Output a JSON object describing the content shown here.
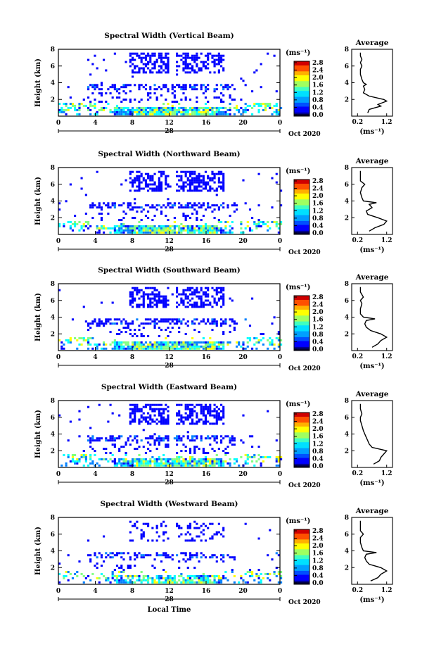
{
  "common": {
    "ylabel": "Height (km)",
    "xlabel": "Local Time",
    "date_label": "Oct 2020",
    "day_label": "28",
    "unit_label": "(ms⁻¹)",
    "avg_title": "Average",
    "x_ticks": [
      "0",
      "4",
      "8",
      "12",
      "16",
      "20",
      "0"
    ],
    "y_ticks": [
      "2",
      "4",
      "6",
      "8"
    ],
    "colorbar_ticks": [
      "2.8",
      "2.4",
      "2.0",
      "1.6",
      "1.2",
      "0.8",
      "0.4",
      "0.0"
    ],
    "avg_x_ticks": [
      "0.2",
      "1.2"
    ],
    "avg_y_ticks": [
      "2",
      "4",
      "6",
      "8"
    ]
  },
  "colors": {
    "scale": [
      "#00008f",
      "#0000ff",
      "#0080ff",
      "#00ffff",
      "#80ff80",
      "#ffff00",
      "#ff8000",
      "#ff0000",
      "#800000"
    ]
  },
  "chart_data": [
    {
      "type": "heatmap",
      "title": "Spectral Width (Vertical Beam)",
      "xlabel": "",
      "ylabel": "Height (km)",
      "xlim": [
        0,
        24
      ],
      "ylim": [
        0,
        8
      ],
      "colorbar_range": [
        0.0,
        2.8
      ],
      "avg_xlim": [
        0.2,
        1.2
      ],
      "avg_profile": {
        "height": [
          0.4,
          0.8,
          1.0,
          1.2,
          1.4,
          1.6,
          1.8,
          2.0,
          2.4,
          2.8,
          3.2,
          3.6,
          3.8,
          4.0,
          4.4,
          5.0,
          5.6,
          6.0,
          6.4,
          6.8,
          7.2,
          7.6
        ],
        "value": [
          0.55,
          0.6,
          0.8,
          1.0,
          0.9,
          1.05,
          1.2,
          1.1,
          0.6,
          0.4,
          0.45,
          0.4,
          0.5,
          0.4,
          0.35,
          0.3,
          0.3,
          0.35,
          0.3,
          0.35,
          0.3,
          0.3
        ]
      }
    },
    {
      "type": "heatmap",
      "title": "Spectral Width (Northward Beam)",
      "xlabel": "",
      "ylabel": "Height (km)",
      "xlim": [
        0,
        24
      ],
      "ylim": [
        0,
        8
      ],
      "colorbar_range": [
        0.0,
        2.8
      ],
      "avg_xlim": [
        0.2,
        1.2
      ],
      "avg_profile": {
        "height": [
          0.4,
          0.8,
          1.2,
          1.6,
          2.0,
          2.4,
          2.8,
          3.2,
          3.6,
          3.8,
          4.0,
          4.4,
          5.0,
          5.6,
          6.0,
          6.4,
          7.0,
          7.6
        ],
        "value": [
          0.6,
          0.8,
          1.1,
          1.2,
          0.9,
          0.55,
          0.5,
          0.7,
          0.6,
          0.85,
          0.4,
          0.35,
          0.3,
          0.35,
          0.45,
          0.3,
          0.3,
          0.3
        ]
      }
    },
    {
      "type": "heatmap",
      "title": "Spectral Width (Southward Beam)",
      "xlabel": "",
      "ylabel": "Height (km)",
      "xlim": [
        0,
        24
      ],
      "ylim": [
        0,
        8
      ],
      "colorbar_range": [
        0.0,
        2.8
      ],
      "avg_xlim": [
        0.2,
        1.2
      ],
      "avg_profile": {
        "height": [
          0.4,
          0.8,
          1.2,
          1.6,
          2.0,
          2.4,
          2.8,
          3.2,
          3.6,
          3.8,
          4.0,
          4.4,
          5.0,
          5.6,
          6.0,
          6.4,
          7.0,
          7.6
        ],
        "value": [
          0.7,
          0.9,
          1.0,
          1.2,
          1.0,
          0.65,
          0.5,
          0.45,
          0.5,
          0.8,
          0.4,
          0.3,
          0.3,
          0.35,
          0.3,
          0.4,
          0.3,
          0.3
        ]
      }
    },
    {
      "type": "heatmap",
      "title": "Spectral Width (Eastward Beam)",
      "xlabel": "",
      "ylabel": "Height (km)",
      "xlim": [
        0,
        24
      ],
      "ylim": [
        0,
        8
      ],
      "colorbar_range": [
        0.0,
        2.8
      ],
      "avg_xlim": [
        0.2,
        1.2
      ],
      "avg_profile": {
        "height": [
          0.4,
          0.8,
          1.2,
          1.6,
          2.0,
          2.4,
          2.8,
          3.2,
          3.6,
          4.0,
          4.4,
          5.0,
          5.6,
          6.0,
          6.4,
          7.0,
          7.6
        ],
        "value": [
          0.75,
          0.95,
          1.0,
          1.1,
          1.2,
          0.7,
          0.6,
          0.55,
          0.5,
          0.45,
          0.4,
          0.35,
          0.3,
          0.3,
          0.35,
          0.3,
          0.3
        ]
      }
    },
    {
      "type": "heatmap",
      "title": "Spectral Width (Westward Beam)",
      "xlabel": "Local Time",
      "ylabel": "Height (km)",
      "xlim": [
        0,
        24
      ],
      "ylim": [
        0,
        8
      ],
      "colorbar_range": [
        0.0,
        2.8
      ],
      "avg_xlim": [
        0.2,
        1.2
      ],
      "avg_profile": {
        "height": [
          0.4,
          0.8,
          1.2,
          1.6,
          2.0,
          2.4,
          2.8,
          3.2,
          3.6,
          3.8,
          4.0,
          4.4,
          5.0,
          5.6,
          6.0,
          6.4,
          7.0,
          7.6
        ],
        "value": [
          0.65,
          0.9,
          1.0,
          1.2,
          1.0,
          0.6,
          0.5,
          0.45,
          0.5,
          0.85,
          0.4,
          0.35,
          0.3,
          0.3,
          0.4,
          0.3,
          0.3,
          0.3
        ]
      }
    }
  ]
}
